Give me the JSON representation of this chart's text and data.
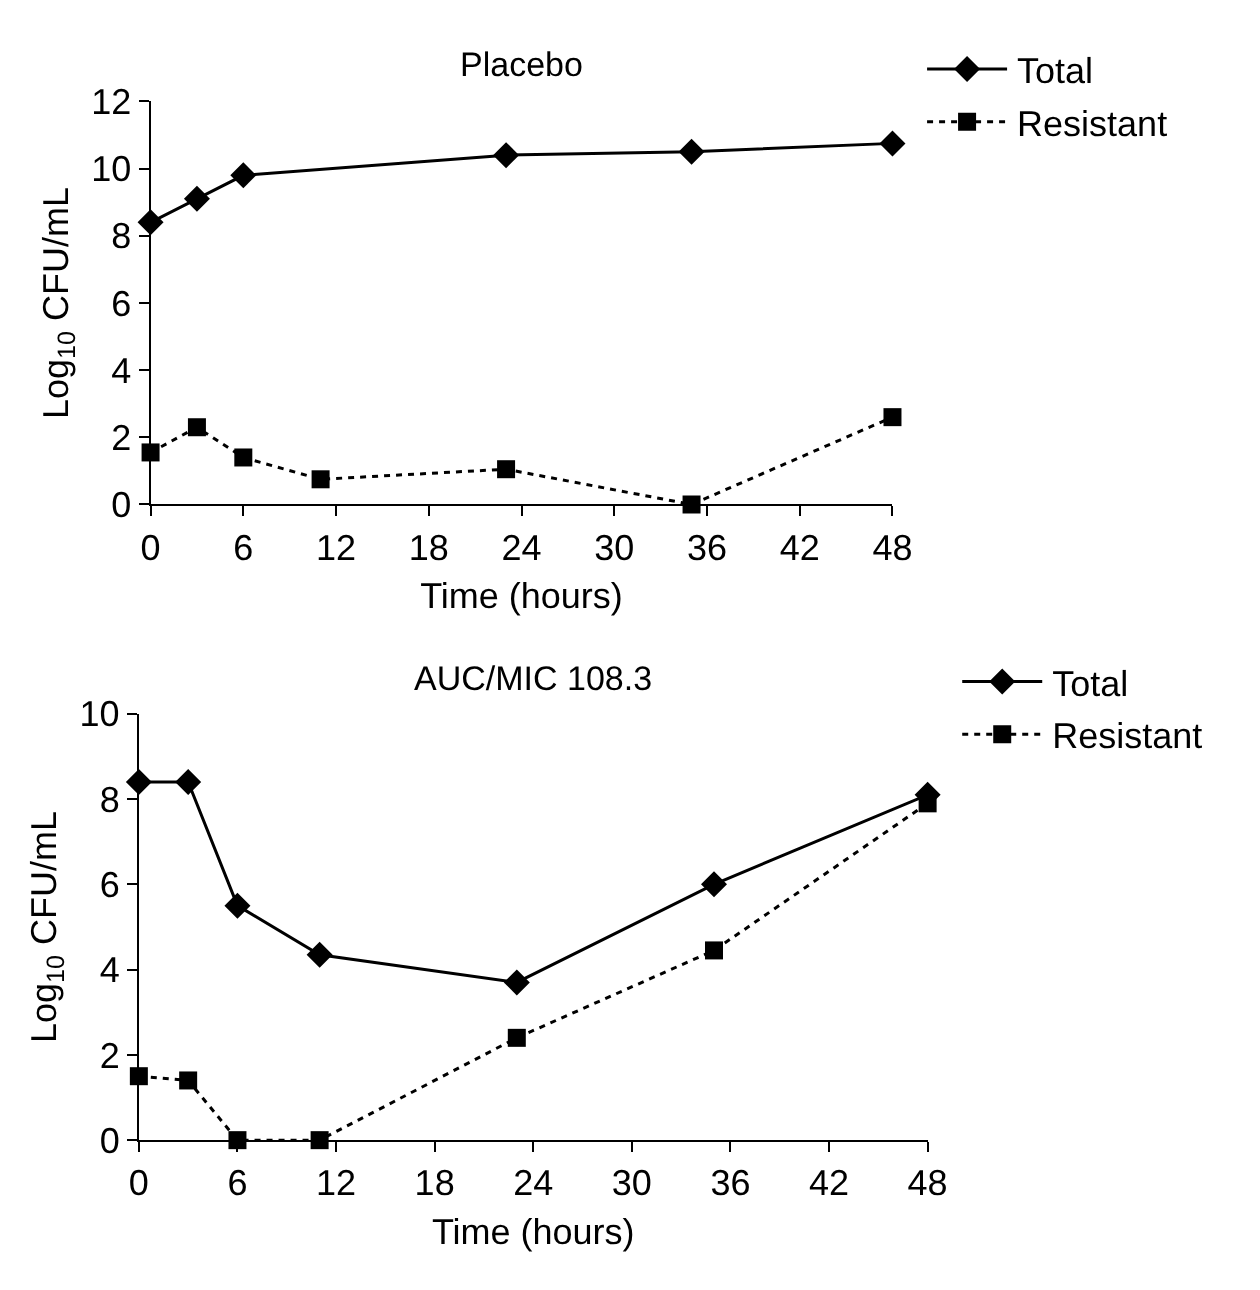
{
  "chart_data": [
    {
      "type": "line",
      "title": "Placebo",
      "xlabel": "Time (hours)",
      "ylabel": "Log$_{10}$ CFU/mL",
      "xlim": [
        0,
        48
      ],
      "xticks": [
        0,
        6,
        12,
        18,
        24,
        30,
        36,
        42,
        48
      ],
      "ylim": [
        0,
        12
      ],
      "yticks": [
        0,
        2,
        4,
        6,
        8,
        10,
        12
      ],
      "legend": "top right",
      "series": [
        {
          "name": "Total",
          "color": "#000000",
          "marker": "diamond",
          "line_style": "solid",
          "x": [
            0,
            3,
            6,
            23,
            35,
            48
          ],
          "values": [
            8.4,
            9.1,
            9.8,
            10.4,
            10.5,
            10.75
          ]
        },
        {
          "name": "Resistant",
          "color": "#000000",
          "marker": "square",
          "line_style": "dotted",
          "x": [
            0,
            3,
            6,
            11,
            23,
            35,
            48
          ],
          "values": [
            1.55,
            2.3,
            1.4,
            0.75,
            1.05,
            0,
            2.6
          ]
        }
      ]
    },
    {
      "type": "line",
      "title": "AUC/MIC 108.3",
      "xlabel": "Time (hours)",
      "ylabel": "Log$_{10}$ CFU/mL",
      "xlim": [
        0,
        48
      ],
      "xticks": [
        0,
        6,
        12,
        18,
        24,
        30,
        36,
        42,
        48
      ],
      "ylim": [
        0,
        10
      ],
      "yticks": [
        0,
        2,
        4,
        6,
        8,
        10
      ],
      "legend": "top right",
      "series": [
        {
          "name": "Total",
          "color": "#000000",
          "marker": "diamond",
          "line_style": "solid",
          "x": [
            0,
            3,
            6,
            11,
            23,
            35,
            48
          ],
          "values": [
            8.4,
            8.4,
            5.5,
            4.35,
            3.7,
            6.0,
            8.1
          ]
        },
        {
          "name": "Resistant",
          "color": "#000000",
          "marker": "square",
          "line_style": "dotted",
          "x": [
            0,
            3,
            6,
            11,
            23,
            35,
            48
          ],
          "values": [
            1.5,
            1.4,
            0,
            0,
            2.4,
            4.45,
            7.9
          ]
        }
      ]
    }
  ]
}
